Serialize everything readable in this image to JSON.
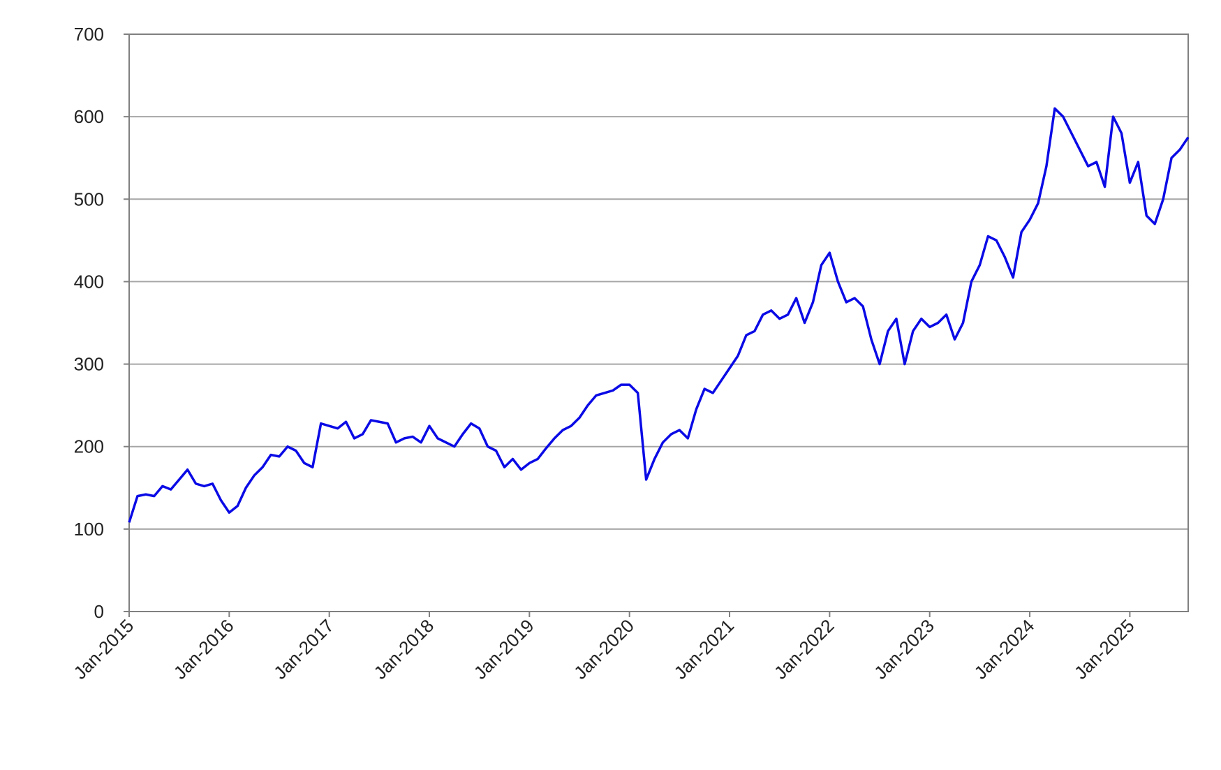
{
  "chart_data": {
    "type": "line",
    "color": "#0a0ae6",
    "grid": true,
    "ylim": [
      0,
      700
    ],
    "yticks": [
      0,
      100,
      200,
      300,
      400,
      500,
      600,
      700
    ],
    "xlim": [
      "2015-01",
      "2025-08"
    ],
    "xticks": [
      {
        "value": "2015-01",
        "label": "Jan-2015"
      },
      {
        "value": "2016-01",
        "label": "Jan-2016"
      },
      {
        "value": "2017-01",
        "label": "Jan-2017"
      },
      {
        "value": "2018-01",
        "label": "Jan-2018"
      },
      {
        "value": "2019-01",
        "label": "Jan-2019"
      },
      {
        "value": "2020-01",
        "label": "Jan-2020"
      },
      {
        "value": "2021-01",
        "label": "Jan-2021"
      },
      {
        "value": "2022-01",
        "label": "Jan-2022"
      },
      {
        "value": "2023-01",
        "label": "Jan-2023"
      },
      {
        "value": "2024-01",
        "label": "Jan-2024"
      },
      {
        "value": "2025-01",
        "label": "Jan-2025"
      }
    ],
    "x": [
      "2015-01",
      "2015-02",
      "2015-03",
      "2015-04",
      "2015-05",
      "2015-06",
      "2015-07",
      "2015-08",
      "2015-09",
      "2015-10",
      "2015-11",
      "2015-12",
      "2016-01",
      "2016-02",
      "2016-03",
      "2016-04",
      "2016-05",
      "2016-06",
      "2016-07",
      "2016-08",
      "2016-09",
      "2016-10",
      "2016-11",
      "2016-12",
      "2017-01",
      "2017-02",
      "2017-03",
      "2017-04",
      "2017-05",
      "2017-06",
      "2017-07",
      "2017-08",
      "2017-09",
      "2017-10",
      "2017-11",
      "2017-12",
      "2018-01",
      "2018-02",
      "2018-03",
      "2018-04",
      "2018-05",
      "2018-06",
      "2018-07",
      "2018-08",
      "2018-09",
      "2018-10",
      "2018-11",
      "2018-12",
      "2019-01",
      "2019-02",
      "2019-03",
      "2019-04",
      "2019-05",
      "2019-06",
      "2019-07",
      "2019-08",
      "2019-09",
      "2019-10",
      "2019-11",
      "2019-12",
      "2020-01",
      "2020-02",
      "2020-03",
      "2020-04",
      "2020-05",
      "2020-06",
      "2020-07",
      "2020-08",
      "2020-09",
      "2020-10",
      "2020-11",
      "2020-12",
      "2021-01",
      "2021-02",
      "2021-03",
      "2021-04",
      "2021-05",
      "2021-06",
      "2021-07",
      "2021-08",
      "2021-09",
      "2021-10",
      "2021-11",
      "2021-12",
      "2022-01",
      "2022-02",
      "2022-03",
      "2022-04",
      "2022-05",
      "2022-06",
      "2022-07",
      "2022-08",
      "2022-09",
      "2022-10",
      "2022-11",
      "2022-12",
      "2023-01",
      "2023-02",
      "2023-03",
      "2023-04",
      "2023-05",
      "2023-06",
      "2023-07",
      "2023-08",
      "2023-09",
      "2023-10",
      "2023-11",
      "2023-12",
      "2024-01",
      "2024-02",
      "2024-03",
      "2024-04",
      "2024-05",
      "2024-06",
      "2024-07",
      "2024-08",
      "2024-09",
      "2024-10",
      "2024-11",
      "2024-12",
      "2025-01",
      "2025-02",
      "2025-03",
      "2025-04",
      "2025-05",
      "2025-06",
      "2025-07",
      "2025-08"
    ],
    "values": [
      108,
      140,
      142,
      140,
      152,
      148,
      160,
      172,
      155,
      152,
      155,
      135,
      120,
      128,
      150,
      165,
      175,
      190,
      188,
      200,
      195,
      180,
      175,
      228,
      225,
      222,
      230,
      210,
      215,
      232,
      230,
      228,
      205,
      210,
      212,
      205,
      225,
      210,
      205,
      200,
      215,
      228,
      222,
      200,
      195,
      175,
      185,
      172,
      180,
      185,
      198,
      210,
      220,
      225,
      235,
      250,
      262,
      265,
      268,
      275,
      275,
      265,
      160,
      185,
      205,
      215,
      220,
      210,
      245,
      270,
      265,
      280,
      295,
      310,
      335,
      340,
      360,
      365,
      355,
      360,
      380,
      350,
      375,
      420,
      435,
      400,
      375,
      380,
      370,
      330,
      300,
      340,
      355,
      300,
      340,
      355,
      345,
      350,
      360,
      330,
      350,
      400,
      420,
      455,
      450,
      430,
      405,
      460,
      475,
      495,
      540,
      610,
      600,
      580,
      560,
      540,
      545,
      515,
      600,
      580,
      520,
      545,
      480,
      470,
      500,
      550,
      560,
      575
    ]
  }
}
